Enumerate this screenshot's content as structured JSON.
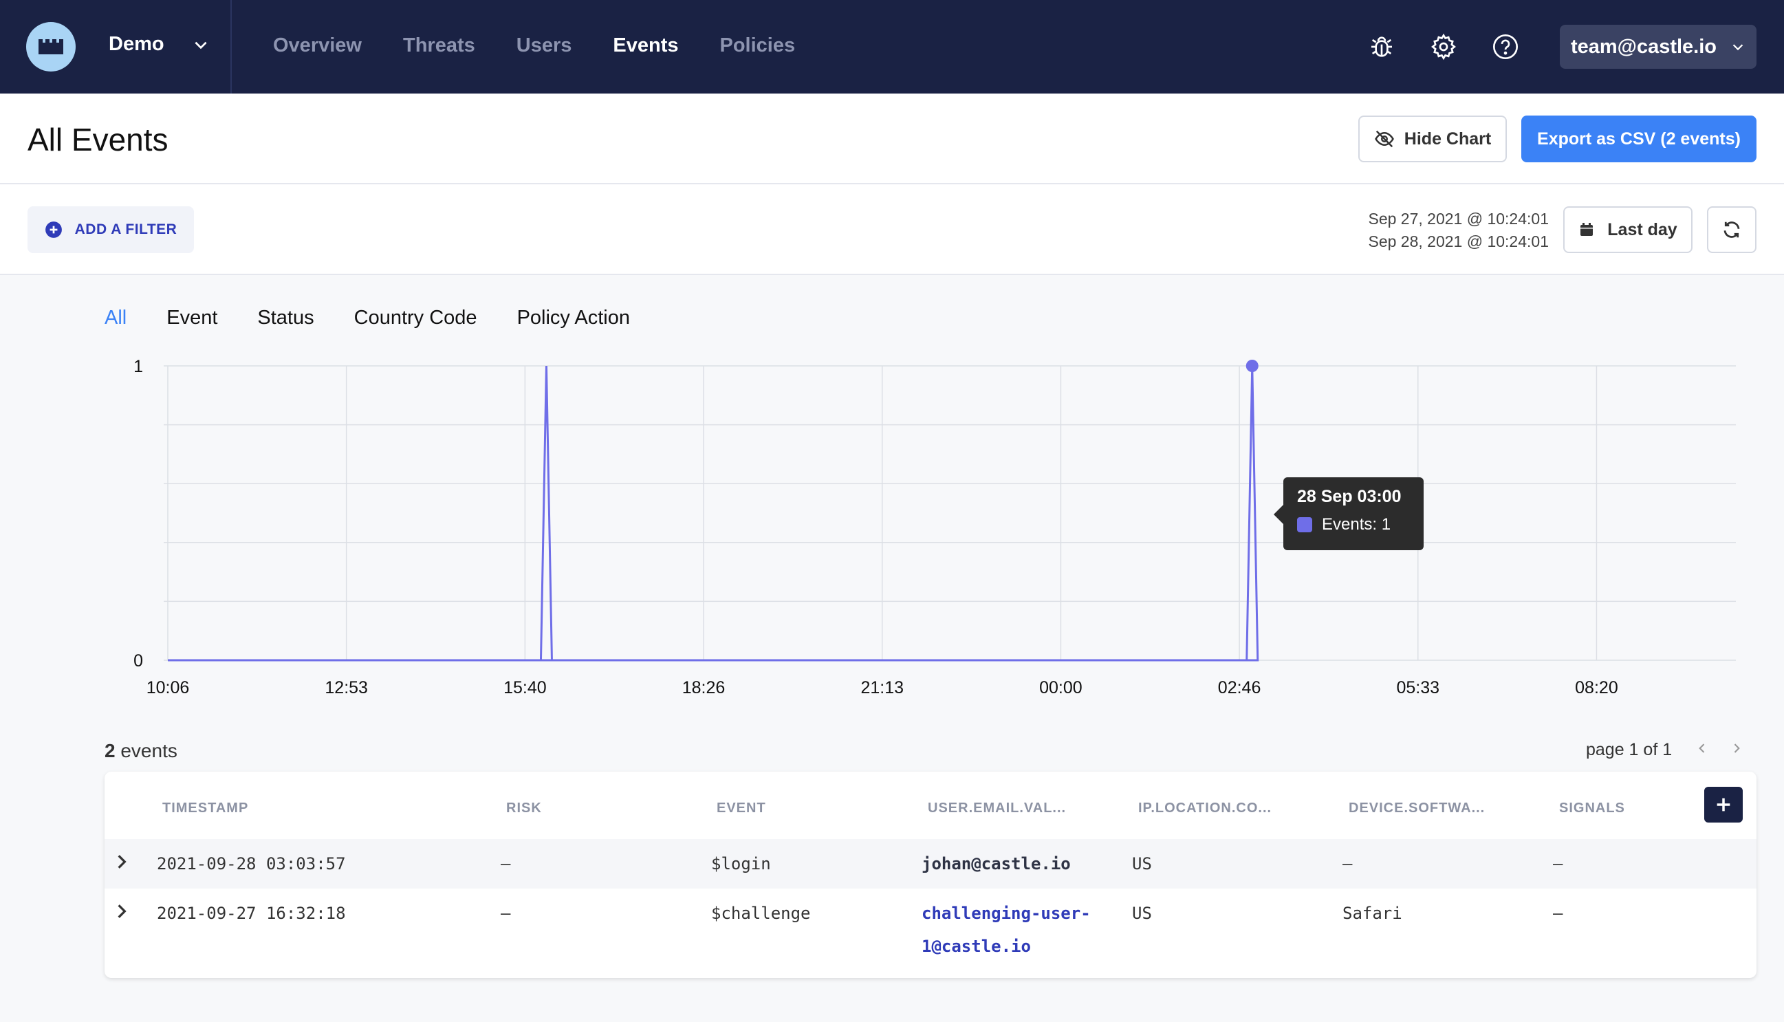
{
  "app": {
    "org_name": "Demo",
    "nav": [
      {
        "label": "Overview",
        "active": false
      },
      {
        "label": "Threats",
        "active": false
      },
      {
        "label": "Users",
        "active": false
      },
      {
        "label": "Events",
        "active": true
      },
      {
        "label": "Policies",
        "active": false
      }
    ],
    "icons": [
      "bug-icon",
      "gear-icon",
      "help-icon"
    ],
    "account": "team@castle.io"
  },
  "header": {
    "title": "All Events",
    "hide_chart_label": "Hide Chart",
    "export_label": "Export as CSV (2 events)"
  },
  "filters": {
    "add_filter_label": "ADD A FILTER",
    "range_start": "Sep 27, 2021 @ 10:24:01",
    "range_end": "Sep 28, 2021 @ 10:24:01",
    "period_label": "Last day"
  },
  "tabs": [
    {
      "label": "All",
      "active": true
    },
    {
      "label": "Event",
      "active": false
    },
    {
      "label": "Status",
      "active": false
    },
    {
      "label": "Country Code",
      "active": false
    },
    {
      "label": "Policy Action",
      "active": false
    }
  ],
  "chart_data": {
    "type": "line",
    "x_ticks": [
      "10:06",
      "12:53",
      "15:40",
      "18:26",
      "21:13",
      "00:00",
      "02:46",
      "05:33",
      "08:20"
    ],
    "y_ticks": [
      "0",
      "1"
    ],
    "ylim": [
      0,
      1
    ],
    "series": [
      {
        "color": "#6f6ee8",
        "points": [
          {
            "x": "10:06",
            "y": 0
          },
          {
            "x": "16:00",
            "y": 1
          },
          {
            "x": "03:00",
            "y": 1
          },
          {
            "x": "10:24",
            "y": 0
          }
        ]
      }
    ],
    "tooltip": {
      "title": "28 Sep 03:00",
      "label": "Events: 1"
    }
  },
  "events": {
    "count": "2",
    "count_suffix": "events",
    "page_label": "page 1 of 1",
    "columns": [
      "TIMESTAMP",
      "RISK",
      "EVENT",
      "USER.EMAIL.VAL...",
      "IP.LOCATION.CO...",
      "DEVICE.SOFTWA...",
      "SIGNALS"
    ],
    "rows": [
      {
        "timestamp": "2021-09-28 03:03:57",
        "risk": "–",
        "event": "$login",
        "email": "johan@castle.io",
        "email_line2": "",
        "country": "US",
        "device": "–",
        "signals": "–"
      },
      {
        "timestamp": "2021-09-27 16:32:18",
        "risk": "–",
        "event": "$challenge",
        "email": "challenging-user-",
        "email_line2": "1@castle.io",
        "country": "US",
        "device": "Safari",
        "signals": "–"
      }
    ]
  }
}
